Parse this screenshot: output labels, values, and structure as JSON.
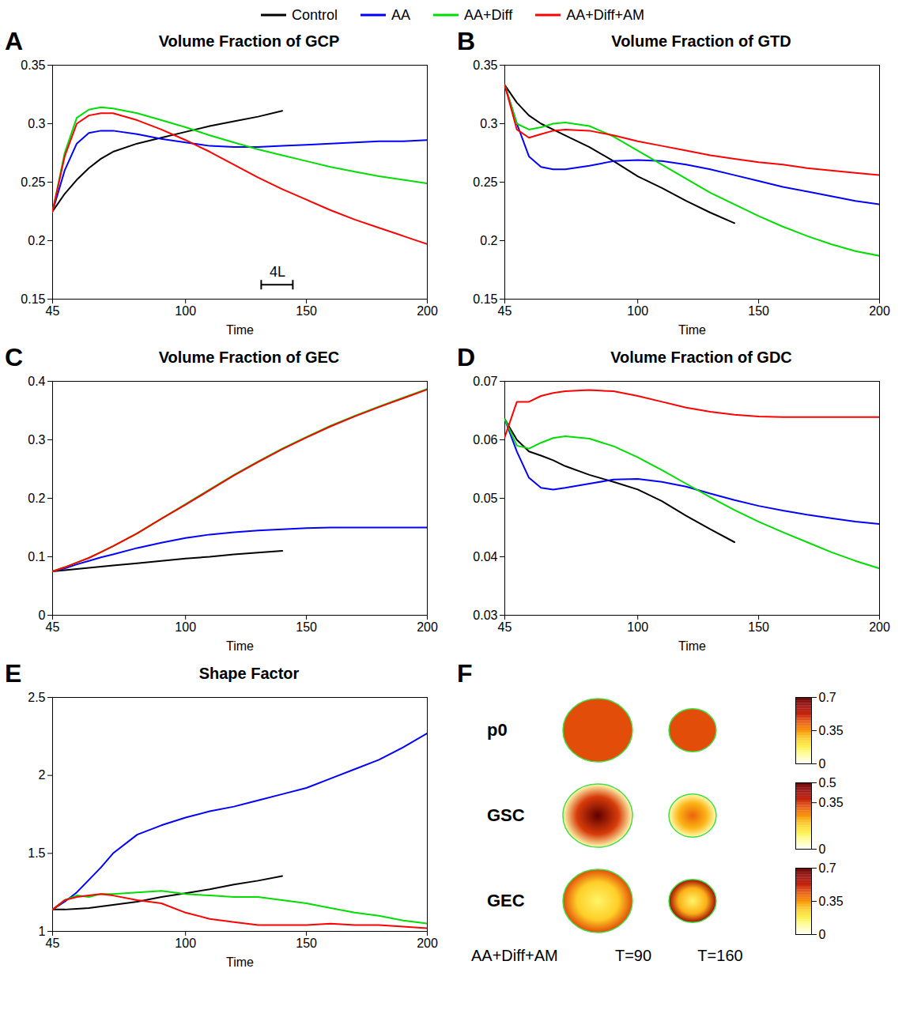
{
  "chart_data": [
    {
      "type": "line",
      "panel": "A",
      "title": "Volume Fraction of GCP",
      "x_label": "Time",
      "x": [
        45,
        50,
        55,
        60,
        65,
        70,
        80,
        90,
        100,
        110,
        120,
        130,
        140,
        150,
        160,
        170,
        180,
        190,
        200
      ],
      "xlim": [
        45,
        200
      ],
      "xticks": [
        45,
        100,
        150,
        200
      ],
      "ylim": [
        0.15,
        0.35
      ],
      "yticks": [
        0.15,
        0.2,
        0.25,
        0.3,
        0.35
      ],
      "legend": "top",
      "annotations": [
        {
          "text": "4L"
        }
      ],
      "series": [
        {
          "name": "Control",
          "color": "#000000",
          "values": [
            0.225,
            0.24,
            0.252,
            0.262,
            0.27,
            0.276,
            0.283,
            0.288,
            0.293,
            0.298,
            0.302,
            0.306,
            0.311,
            null,
            null,
            null,
            null,
            null,
            null
          ]
        },
        {
          "name": "AA",
          "color": "#0000ff",
          "values": [
            0.225,
            0.26,
            0.283,
            0.292,
            0.294,
            0.294,
            0.291,
            0.287,
            0.284,
            0.281,
            0.28,
            0.28,
            0.281,
            0.282,
            0.283,
            0.284,
            0.285,
            0.285,
            0.286
          ]
        },
        {
          "name": "AA+Diff",
          "color": "#00dd00",
          "values": [
            0.225,
            0.275,
            0.305,
            0.312,
            0.314,
            0.313,
            0.309,
            0.303,
            0.297,
            0.29,
            0.284,
            0.278,
            0.273,
            0.268,
            0.263,
            0.259,
            0.255,
            0.252,
            0.249
          ]
        },
        {
          "name": "AA+Diff+AM",
          "color": "#ff0000",
          "values": [
            0.225,
            0.272,
            0.3,
            0.307,
            0.309,
            0.309,
            0.303,
            0.295,
            0.286,
            0.276,
            0.265,
            0.254,
            0.244,
            0.235,
            0.226,
            0.218,
            0.211,
            0.204,
            0.197
          ]
        }
      ]
    },
    {
      "type": "line",
      "panel": "B",
      "title": "Volume Fraction of GTD",
      "x_label": "Time",
      "x": [
        45,
        50,
        55,
        60,
        65,
        70,
        80,
        90,
        100,
        110,
        120,
        130,
        140,
        150,
        160,
        170,
        180,
        190,
        200
      ],
      "xlim": [
        45,
        200
      ],
      "xticks": [
        45,
        100,
        150,
        200
      ],
      "ylim": [
        0.15,
        0.35
      ],
      "yticks": [
        0.15,
        0.2,
        0.25,
        0.3,
        0.35
      ],
      "series": [
        {
          "name": "Control",
          "color": "#000000",
          "values": [
            0.333,
            0.318,
            0.307,
            0.3,
            0.295,
            0.29,
            0.28,
            0.268,
            0.255,
            0.245,
            0.234,
            0.224,
            0.215,
            null,
            null,
            null,
            null,
            null,
            null
          ]
        },
        {
          "name": "AA",
          "color": "#0000ff",
          "values": [
            0.333,
            0.3,
            0.272,
            0.263,
            0.261,
            0.261,
            0.264,
            0.268,
            0.269,
            0.268,
            0.265,
            0.261,
            0.256,
            0.251,
            0.246,
            0.242,
            0.238,
            0.234,
            0.231
          ]
        },
        {
          "name": "AA+Diff",
          "color": "#00dd00",
          "values": [
            0.333,
            0.3,
            0.295,
            0.297,
            0.3,
            0.301,
            0.298,
            0.289,
            0.277,
            0.265,
            0.253,
            0.241,
            0.231,
            0.221,
            0.212,
            0.204,
            0.197,
            0.191,
            0.187
          ]
        },
        {
          "name": "AA+Diff+AM",
          "color": "#ff0000",
          "values": [
            0.333,
            0.295,
            0.288,
            0.291,
            0.294,
            0.295,
            0.294,
            0.29,
            0.285,
            0.281,
            0.277,
            0.273,
            0.27,
            0.267,
            0.265,
            0.262,
            0.26,
            0.258,
            0.256
          ]
        }
      ]
    },
    {
      "type": "line",
      "panel": "C",
      "title": "Volume Fraction of GEC",
      "x_label": "Time",
      "x": [
        45,
        50,
        55,
        60,
        65,
        70,
        80,
        90,
        100,
        110,
        120,
        130,
        140,
        150,
        160,
        170,
        180,
        190,
        200
      ],
      "xlim": [
        45,
        200
      ],
      "xticks": [
        45,
        100,
        150,
        200
      ],
      "ylim": [
        0,
        0.4
      ],
      "yticks": [
        0,
        0.1,
        0.2,
        0.3,
        0.4
      ],
      "series": [
        {
          "name": "Control",
          "color": "#000000",
          "values": [
            0.075,
            0.077,
            0.079,
            0.081,
            0.083,
            0.085,
            0.089,
            0.093,
            0.097,
            0.1,
            0.104,
            0.107,
            0.11,
            null,
            null,
            null,
            null,
            null,
            null
          ]
        },
        {
          "name": "AA",
          "color": "#0000ff",
          "values": [
            0.075,
            0.08,
            0.087,
            0.093,
            0.099,
            0.104,
            0.115,
            0.124,
            0.132,
            0.138,
            0.142,
            0.145,
            0.147,
            0.149,
            0.15,
            0.15,
            0.15,
            0.15,
            0.15
          ]
        },
        {
          "name": "AA+Diff",
          "color": "#00dd00",
          "values": [
            0.075,
            0.082,
            0.09,
            0.098,
            0.108,
            0.118,
            0.14,
            0.165,
            0.19,
            0.215,
            0.24,
            0.263,
            0.285,
            0.305,
            0.324,
            0.341,
            0.357,
            0.372,
            0.387
          ]
        },
        {
          "name": "AA+Diff+AM",
          "color": "#ff0000",
          "values": [
            0.075,
            0.082,
            0.09,
            0.098,
            0.108,
            0.118,
            0.14,
            0.165,
            0.189,
            0.214,
            0.239,
            0.262,
            0.284,
            0.304,
            0.323,
            0.34,
            0.356,
            0.371,
            0.386
          ]
        }
      ]
    },
    {
      "type": "line",
      "panel": "D",
      "title": "Volume Fraction of GDC",
      "x_label": "Time",
      "x": [
        45,
        50,
        55,
        60,
        65,
        70,
        80,
        90,
        100,
        110,
        120,
        130,
        140,
        150,
        160,
        170,
        180,
        190,
        200
      ],
      "xlim": [
        45,
        200
      ],
      "xticks": [
        45,
        100,
        150,
        200
      ],
      "ylim": [
        0.03,
        0.07
      ],
      "yticks": [
        0.03,
        0.04,
        0.05,
        0.06,
        0.07
      ],
      "series": [
        {
          "name": "Control",
          "color": "#000000",
          "values": [
            0.0635,
            0.06,
            0.058,
            0.0573,
            0.0565,
            0.0555,
            0.054,
            0.0528,
            0.0515,
            0.0495,
            0.047,
            0.0447,
            0.0425,
            null,
            null,
            null,
            null,
            null,
            null
          ]
        },
        {
          "name": "AA",
          "color": "#0000ff",
          "values": [
            0.0635,
            0.058,
            0.0535,
            0.0518,
            0.0515,
            0.0518,
            0.0525,
            0.0532,
            0.0533,
            0.0528,
            0.052,
            0.0508,
            0.0497,
            0.0487,
            0.0479,
            0.0472,
            0.0466,
            0.046,
            0.0456
          ]
        },
        {
          "name": "AA+Diff",
          "color": "#00dd00",
          "values": [
            0.0635,
            0.059,
            0.0585,
            0.0595,
            0.0603,
            0.0606,
            0.0602,
            0.0589,
            0.057,
            0.0548,
            0.0525,
            0.0502,
            0.048,
            0.046,
            0.0442,
            0.0425,
            0.0408,
            0.0393,
            0.038
          ]
        },
        {
          "name": "AA+Diff+AM",
          "color": "#ff0000",
          "values": [
            0.0605,
            0.0665,
            0.0665,
            0.0675,
            0.068,
            0.0683,
            0.0685,
            0.0683,
            0.0675,
            0.0665,
            0.0655,
            0.0648,
            0.0643,
            0.064,
            0.0639,
            0.0639,
            0.0639,
            0.0639,
            0.0639
          ]
        }
      ]
    },
    {
      "type": "line",
      "panel": "E",
      "title": "Shape Factor",
      "x_label": "Time",
      "x": [
        45,
        50,
        55,
        60,
        65,
        70,
        80,
        90,
        100,
        110,
        120,
        130,
        140,
        150,
        160,
        170,
        180,
        190,
        200
      ],
      "xlim": [
        45,
        200
      ],
      "xticks": [
        45,
        100,
        150,
        200
      ],
      "ylim": [
        1,
        2.5
      ],
      "yticks": [
        1,
        1.5,
        2,
        2.5
      ],
      "series": [
        {
          "name": "Control",
          "color": "#000000",
          "values": [
            1.14,
            1.14,
            1.145,
            1.15,
            1.16,
            1.17,
            1.19,
            1.22,
            1.245,
            1.27,
            1.3,
            1.325,
            1.355,
            null,
            null,
            null,
            null,
            null,
            null
          ]
        },
        {
          "name": "AA",
          "color": "#0000ff",
          "values": [
            1.14,
            1.19,
            1.25,
            1.33,
            1.41,
            1.5,
            1.62,
            1.68,
            1.73,
            1.77,
            1.8,
            1.84,
            1.88,
            1.92,
            1.98,
            2.04,
            2.1,
            2.18,
            2.27
          ]
        },
        {
          "name": "AA+Diff",
          "color": "#00dd00",
          "values": [
            1.14,
            1.2,
            1.23,
            1.22,
            1.24,
            1.24,
            1.25,
            1.26,
            1.24,
            1.23,
            1.22,
            1.22,
            1.2,
            1.18,
            1.15,
            1.12,
            1.1,
            1.07,
            1.05
          ]
        },
        {
          "name": "AA+Diff+AM",
          "color": "#ff0000",
          "values": [
            1.14,
            1.2,
            1.22,
            1.23,
            1.24,
            1.23,
            1.2,
            1.18,
            1.12,
            1.08,
            1.06,
            1.04,
            1.04,
            1.04,
            1.05,
            1.04,
            1.04,
            1.03,
            1.02
          ]
        }
      ]
    },
    {
      "type": "heatmap",
      "panel": "F",
      "condition": "AA+Diff+AM",
      "columns": [
        "T=90",
        "T=160"
      ],
      "rows": [
        {
          "name": "p0",
          "colorbar": {
            "range": [
              0,
              0.7
            ],
            "ticks": [
              0,
              0.35,
              0.7
            ]
          },
          "cells": [
            {
              "center": 0.45,
              "edge": 0.45
            },
            {
              "center": 0.45,
              "edge": 0.45
            }
          ]
        },
        {
          "name": "GSC",
          "colorbar": {
            "range": [
              0,
              0.5
            ],
            "ticks": [
              0,
              0.35,
              0.5
            ]
          },
          "cells": [
            {
              "center": 0.5,
              "edge": 0.05
            },
            {
              "center": 0.3,
              "edge": 0.05
            }
          ]
        },
        {
          "name": "GEC",
          "colorbar": {
            "range": [
              0,
              0.7
            ],
            "ticks": [
              0,
              0.35,
              0.7
            ]
          },
          "cells": [
            {
              "center": 0.15,
              "edge": 0.45
            },
            {
              "center": 0.15,
              "edge": 0.6
            }
          ]
        }
      ]
    }
  ]
}
